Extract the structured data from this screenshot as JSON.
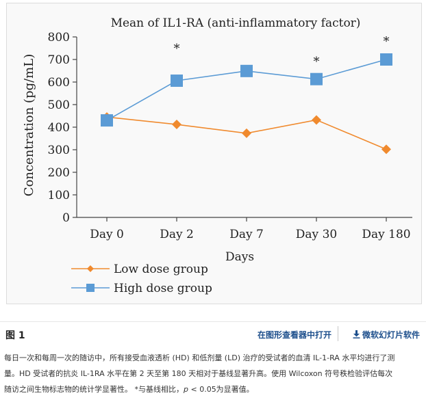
{
  "chart_data": {
    "type": "line",
    "title": "Mean of IL1-RA (anti-inflammatory factor)",
    "xlabel": "Days",
    "ylabel": "Concentration (pg/mL)",
    "categories": [
      "Day 0",
      "Day 2",
      "Day 7",
      "Day 30",
      "Day 180"
    ],
    "ylim": [
      0,
      800
    ],
    "yticks": [
      "0",
      "100",
      "200",
      "300",
      "400",
      "500",
      "600",
      "700",
      "800"
    ],
    "grid": false,
    "legend_position": "bottom-left",
    "series": [
      {
        "name": "Low dose group",
        "marker": "diamond",
        "color": "#f08a2e",
        "values": [
          445,
          412,
          373,
          432,
          302
        ]
      },
      {
        "name": "High dose group",
        "marker": "square",
        "color": "#5b9bd5",
        "values": [
          430,
          606,
          649,
          613,
          700
        ]
      }
    ],
    "annotations": [
      {
        "text": "*",
        "category": "Day 2",
        "value": 755
      },
      {
        "text": "*",
        "category": "Day 30",
        "value": 697
      },
      {
        "text": "*",
        "category": "Day 180",
        "value": 786
      }
    ]
  },
  "figure": {
    "label": "图 1",
    "open_viewer": "在图形查看器中打开",
    "download_ppt": "微软幻灯片软件",
    "download_icon": "download-icon",
    "caption": {
      "line1": "每日一次和每周一次的随访中，所有接受血液透析 (HD) 和低剂量 (LD) 治疗的受试者的血清 IL-1-RA 水平均进行了测",
      "line2": "量。HD 受试者的抗炎 IL-1RA 水平在第 2 天至第 180 天相对于基线显著升高。使用 Wilcoxon 符号秩检验评估每次",
      "line3_main": "随访之间生物标志物的统计学显著性。 *与基线相比，",
      "line3_p": "p",
      "line3_end": " < 0.05为显著值。"
    }
  }
}
